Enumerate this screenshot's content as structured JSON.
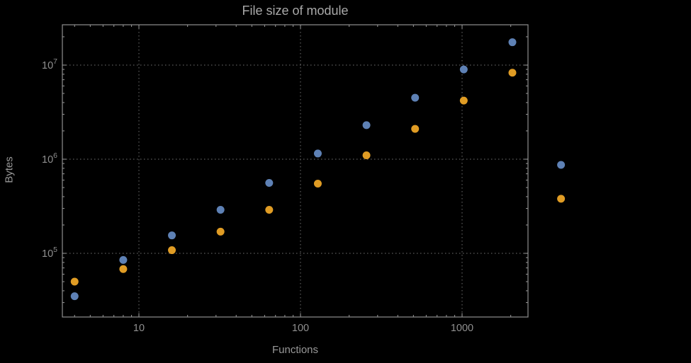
{
  "page": {
    "background": "#000000"
  },
  "chart_data": {
    "type": "scatter",
    "title": "File size of module",
    "xlabel": "Functions",
    "ylabel": "Bytes",
    "x_scale": "log",
    "y_scale": "log",
    "grid": "dotted lines at decade ticks",
    "legend": "none",
    "xlim": [
      3.4,
      2600
    ],
    "ylim": [
      21000,
      27000000
    ],
    "x": [
      4,
      8,
      16,
      32,
      64,
      128,
      256,
      512,
      1024,
      2048,
      4096
    ],
    "series": [
      {
        "name": "blue",
        "color": "#5e81b5",
        "values": [
          35000,
          85000,
          155000,
          290000,
          560000,
          1150000,
          2300000,
          4500000,
          9000000,
          17500000,
          870000
        ]
      },
      {
        "name": "orange",
        "color": "#e09c24",
        "values": [
          50000,
          68000,
          108000,
          170000,
          290000,
          550000,
          1100000,
          2100000,
          4200000,
          8300000,
          380000
        ]
      }
    ],
    "x_ticks": [
      {
        "value": 10,
        "label": "10"
      },
      {
        "value": 100,
        "label": "100"
      },
      {
        "value": 1000,
        "label": "1000"
      }
    ],
    "y_ticks": [
      {
        "value": 100000,
        "base": "10",
        "exp": "5"
      },
      {
        "value": 1000000,
        "base": "10",
        "exp": "6"
      },
      {
        "value": 10000000,
        "base": "10",
        "exp": "7"
      }
    ],
    "colors": {
      "frame": "#8f8f8f",
      "grid": "#5e5e5e",
      "tick_labels": "#8f8f8f",
      "title": "#a9a9a9"
    }
  }
}
